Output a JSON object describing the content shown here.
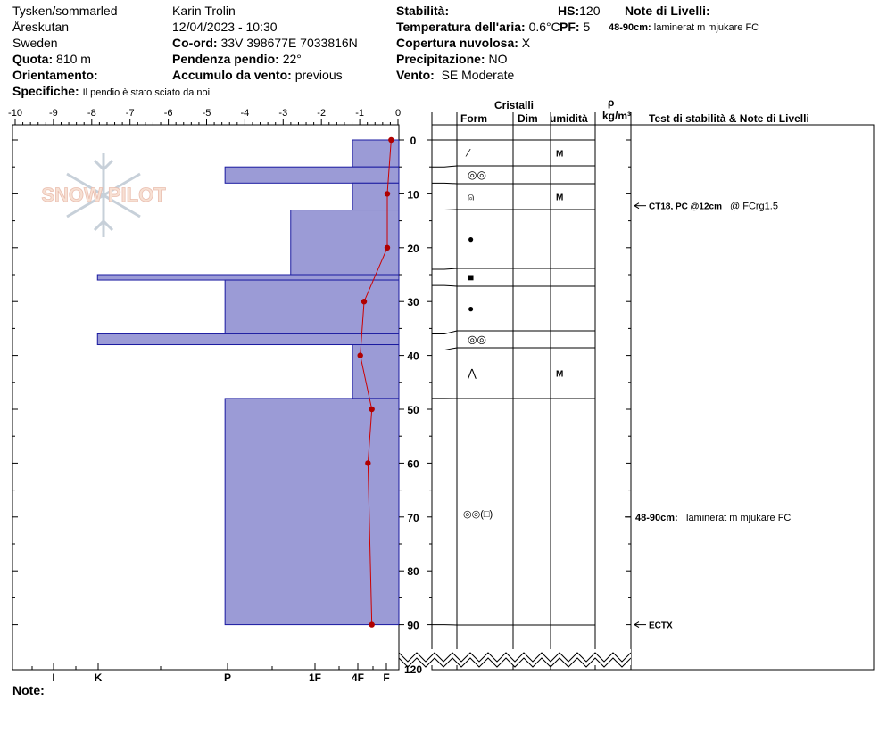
{
  "header": {
    "location_name": "Tysken/sommarled",
    "region": "Åreskutan",
    "country": "Sweden",
    "elevation_label": "Quota:",
    "elevation_value": "810 m",
    "aspect_label": "Orientamento:",
    "aspect_value": "",
    "observer": "Karin  Trolin",
    "datetime": "12/04/2023 - 10:30",
    "coord_label": "Co-ord:",
    "coord_value": "33V 398677E 7033816N",
    "slope_label": "Pendenza pendio:",
    "slope_value": "22°",
    "wind_loading_label": "Accumulo da vento:",
    "wind_loading_value": "previous",
    "specifics_label": "Specifiche:",
    "specifics_value": "Il pendio è stato sciato da noi",
    "stability_label": "Stabilità:",
    "stability_value": "",
    "air_temp_label": "Temperatura dell'aria:",
    "air_temp_value": "0.6°C",
    "sky_label": "Copertura nuvolosa:",
    "sky_value": "X",
    "precip_label": "Precipitazione:",
    "precip_value": "NO",
    "wind_label": "Vento:",
    "wind_value": "SE Moderate",
    "hs_label": "HS:",
    "hs_value": "120",
    "pf_label": "PF:",
    "pf_value": "5",
    "layer_notes_label": "Note di Livelli:",
    "layer_note_range": "48-90cm:",
    "layer_note_text": "laminerat m mjukare FC",
    "notes_label": "Note:"
  },
  "watermark": {
    "text": "SNOW PILOT"
  },
  "table_headers": {
    "crystals": "Cristalli",
    "form": "Form",
    "size": "Dim",
    "moisture": "umidità",
    "rho": "ρ",
    "density_unit": "kg/m³",
    "tests": "Test di stabilità & Note di Livelli"
  },
  "colors": {
    "hardness_fill": "#9b9bd6",
    "hardness_stroke": "#1a1aa0",
    "temp_line": "#cc0000",
    "temp_dot": "#b00000"
  },
  "chart_data": {
    "type": "snow_profile",
    "temperature_axis": {
      "ticks": [
        "-10",
        "-9",
        "-8",
        "-7",
        "-6",
        "-5",
        "-4",
        "-3",
        "-2",
        "-1",
        "0"
      ],
      "range": [
        -10,
        0
      ]
    },
    "depth_axis": {
      "ticks": [
        "0",
        "10",
        "20",
        "30",
        "40",
        "50",
        "60",
        "70",
        "80",
        "90",
        "120"
      ],
      "range": [
        0,
        120
      ]
    },
    "hardness_axis": {
      "labels": [
        "I",
        "K",
        "P",
        "1F",
        "4F",
        "F"
      ]
    },
    "hardness_layers": [
      {
        "top": 0,
        "bottom": 5,
        "hardness": "4F"
      },
      {
        "top": 5,
        "bottom": 8,
        "hardness": "P"
      },
      {
        "top": 8,
        "bottom": 13,
        "hardness": "4F"
      },
      {
        "top": 13,
        "bottom": 25,
        "hardness": "1F+"
      },
      {
        "top": 25,
        "bottom": 26,
        "hardness": "K"
      },
      {
        "top": 26,
        "bottom": 36,
        "hardness": "P"
      },
      {
        "top": 36,
        "bottom": 38,
        "hardness": "K"
      },
      {
        "top": 38,
        "bottom": 48,
        "hardness": "4F"
      },
      {
        "top": 48,
        "bottom": 90,
        "hardness": "P"
      }
    ],
    "hardness_widths": [
      -1.2,
      -4.5,
      -1.2,
      -2.8,
      -7.8,
      -4.5,
      -7.8,
      -1.2,
      -4.5
    ],
    "temperature_profile": [
      {
        "depth": 0,
        "temp": -0.2
      },
      {
        "depth": 10,
        "temp": -0.3
      },
      {
        "depth": 20,
        "temp": -0.3
      },
      {
        "depth": 30,
        "temp": -0.9
      },
      {
        "depth": 40,
        "temp": -1.0
      },
      {
        "depth": 50,
        "temp": -0.7
      },
      {
        "depth": 60,
        "temp": -0.8
      },
      {
        "depth": 90,
        "temp": -0.7
      }
    ],
    "layers": [
      {
        "top": 0,
        "bottom": 5,
        "form": "⁄",
        "moisture": "M"
      },
      {
        "top": 5,
        "bottom": 8,
        "form": "◎◎",
        "moisture": ""
      },
      {
        "top": 8,
        "bottom": 13,
        "form": "⍝",
        "moisture": "M"
      },
      {
        "top": 13,
        "bottom": 24,
        "form": "●",
        "moisture": ""
      },
      {
        "top": 24,
        "bottom": 27,
        "form": "■",
        "moisture": ""
      },
      {
        "top": 27,
        "bottom": 36,
        "form": "●",
        "moisture": ""
      },
      {
        "top": 36,
        "bottom": 39,
        "form": "◎◎",
        "moisture": ""
      },
      {
        "top": 39,
        "bottom": 48,
        "form": "⋀",
        "moisture": "M"
      },
      {
        "top": 48,
        "bottom": 90,
        "form": "◎◎(□)",
        "moisture": ""
      }
    ],
    "tests": [
      {
        "depth": 12,
        "label": "CT18, PC @12cm",
        "extra": "@ FCrg1.5"
      },
      {
        "depth": 90,
        "label": "ECTX",
        "extra": ""
      }
    ],
    "layer_note": {
      "depth": 70,
      "range": "48-90cm:",
      "text": "laminerat m mjukare FC"
    }
  }
}
